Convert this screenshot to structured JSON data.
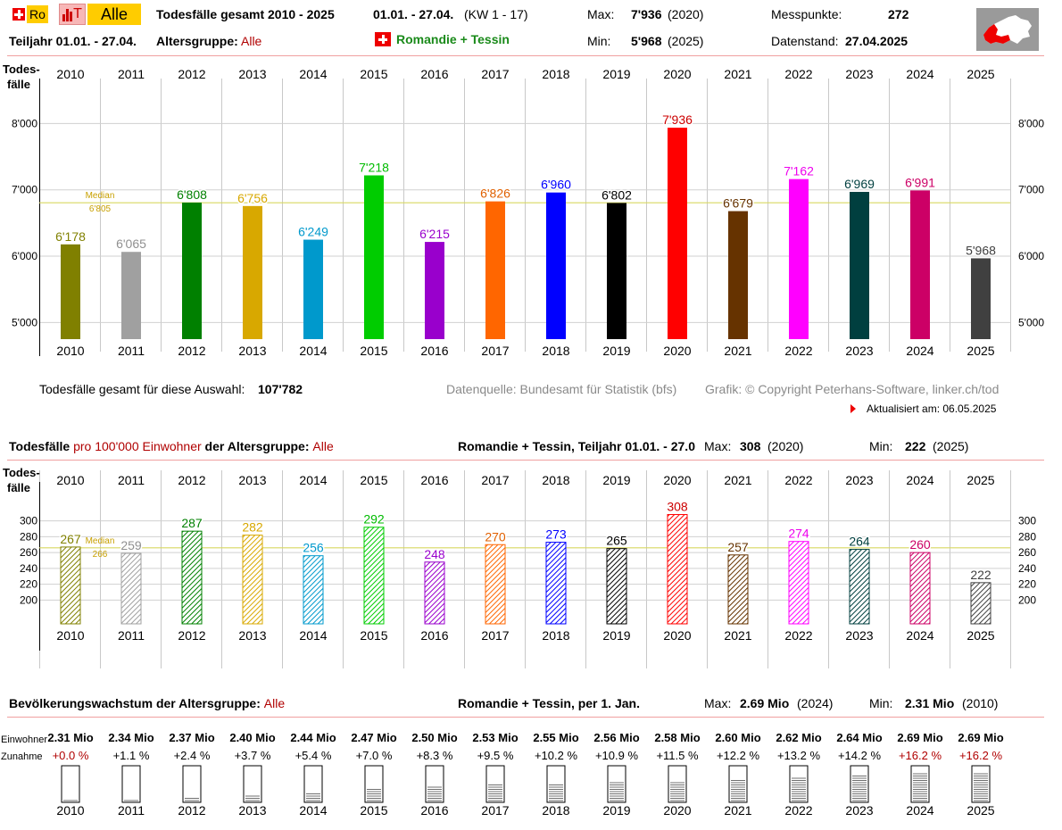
{
  "header": {
    "btn_ro": "Ro",
    "btn_t": "T",
    "btn_alle": "Alle",
    "title": "Todesfälle gesamt 2010 - 2025",
    "period": "01.01. - 27.04.",
    "kw": "(KW 1 - 17)",
    "max_label": "Max:",
    "max_value": "7'936",
    "max_year": "(2020)",
    "messpunkte_label": "Messpunkte:",
    "messpunkte_value": "272",
    "teiljahr": "Teiljahr 01.01. - 27.04.",
    "altersgruppe_label": "Altersgruppe:",
    "altersgruppe_value": "Alle",
    "region": "Romandie + Tessin",
    "min_label": "Min:",
    "min_value": "5'968",
    "min_year": "(2025)",
    "datenstand_label": "Datenstand:",
    "datenstand_value": "27.04.2025"
  },
  "colors": [
    "#808000",
    "#a0a0a0",
    "#008000",
    "#d8a800",
    "#0099cc",
    "#00cc00",
    "#9900cc",
    "#ff6600",
    "#0000ff",
    "#000000",
    "#ff0000",
    "#663300",
    "#ff00ff",
    "#003f3f",
    "#cc0066",
    "#404040"
  ],
  "label_colors": [
    "#808000",
    "#909090",
    "#008000",
    "#d8a800",
    "#0099cc",
    "#00bb00",
    "#9900cc",
    "#e06000",
    "#0000ff",
    "#000000",
    "#cc0000",
    "#663300",
    "#ee00ee",
    "#003f3f",
    "#cc0066",
    "#404040"
  ],
  "chart_data": [
    {
      "type": "bar",
      "ylabel": "Todes-\nfälle",
      "categories": [
        "2010",
        "2011",
        "2012",
        "2013",
        "2014",
        "2015",
        "2016",
        "2017",
        "2018",
        "2019",
        "2020",
        "2021",
        "2022",
        "2023",
        "2024",
        "2025"
      ],
      "values": [
        6178,
        6065,
        6808,
        6756,
        6249,
        7218,
        6215,
        6826,
        6960,
        6802,
        7936,
        6679,
        7162,
        6969,
        6991,
        5968
      ],
      "value_labels": [
        "6'178",
        "6'065",
        "6'808",
        "6'756",
        "6'249",
        "7'218",
        "6'215",
        "6'826",
        "6'960",
        "6'802",
        "7'936",
        "6'679",
        "7'162",
        "6'969",
        "6'991",
        "5'968"
      ],
      "ylim": [
        4750,
        9000
      ],
      "yticks": [
        5000,
        6000,
        7000,
        8000
      ],
      "ytick_labels": [
        "5'000",
        "6'000",
        "7'000",
        "8'000"
      ],
      "median_label": "Median",
      "median_value_label": "6'805",
      "median": 6805,
      "grid": true
    },
    {
      "type": "bar",
      "ylabel": "Todes-\nfälle",
      "categories": [
        "2010",
        "2011",
        "2012",
        "2013",
        "2014",
        "2015",
        "2016",
        "2017",
        "2018",
        "2019",
        "2020",
        "2021",
        "2022",
        "2023",
        "2024",
        "2025"
      ],
      "values": [
        267,
        259,
        287,
        282,
        256,
        292,
        248,
        270,
        273,
        265,
        308,
        257,
        274,
        264,
        260,
        222
      ],
      "value_labels": [
        "267",
        "259",
        "287",
        "282",
        "256",
        "292",
        "248",
        "270",
        "273",
        "265",
        "308",
        "257",
        "274",
        "264",
        "260",
        "222"
      ],
      "ylim": [
        170,
        330
      ],
      "yticks": [
        200,
        220,
        240,
        260,
        280,
        300
      ],
      "ytick_labels": [
        "200",
        "220",
        "240",
        "260",
        "280",
        "300"
      ],
      "median_label": "Median",
      "median_value_label": "266",
      "median": 266,
      "grid": true
    },
    {
      "type": "bar",
      "categories": [
        "2010",
        "2011",
        "2012",
        "2013",
        "2014",
        "2015",
        "2016",
        "2017",
        "2018",
        "2019",
        "2020",
        "2021",
        "2022",
        "2023",
        "2024",
        "2025"
      ],
      "einwohner_label": "Einwohner",
      "zunahme_label": "Zunahme",
      "population_labels": [
        "2.31 Mio",
        "2.34 Mio",
        "2.37 Mio",
        "2.40 Mio",
        "2.44 Mio",
        "2.47 Mio",
        "2.50 Mio",
        "2.53 Mio",
        "2.55 Mio",
        "2.56 Mio",
        "2.58 Mio",
        "2.60 Mio",
        "2.62 Mio",
        "2.64 Mio",
        "2.69 Mio",
        "2.69 Mio"
      ],
      "growth_labels": [
        "+0.0 %",
        "+1.1 %",
        "+2.4 %",
        "+3.7 %",
        "+5.4 %",
        "+7.0 %",
        "+8.3 %",
        "+9.5 %",
        "+10.2 %",
        "+10.9 %",
        "+11.5 %",
        "+12.2 %",
        "+13.2 %",
        "+14.2 %",
        "+16.2 %",
        "+16.2 %"
      ],
      "growth": [
        0.0,
        1.1,
        2.4,
        3.7,
        5.4,
        7.0,
        8.3,
        9.5,
        10.2,
        10.9,
        11.5,
        12.2,
        13.2,
        14.2,
        16.2,
        16.2
      ]
    }
  ],
  "summary": {
    "total_label": "Todesfälle gesamt für diese Auswahl:",
    "total_value": "107'782",
    "source": "Datenquelle: Bundesamt für Statistik (bfs)",
    "copyright": "Grafik: © Copyright Peterhans-Software, linker.ch/tod",
    "updated": "Aktualisiert am: 06.05.2025"
  },
  "section2": {
    "title_a": "Todesfälle",
    "title_b": "pro 100'000 Einwohner",
    "title_c": "der Altersgruppe:",
    "alle": "Alle",
    "region": "Romandie + Tessin, Teiljahr 01.01. - 27.0",
    "max_label": "Max:",
    "max_value": "308",
    "max_year": "(2020)",
    "min_label": "Min:",
    "min_value": "222",
    "min_year": "(2025)"
  },
  "section3": {
    "title": "Bevölkerungswachstum der Altersgruppe:",
    "alle": "Alle",
    "region": "Romandie + Tessin, per 1. Jan.",
    "max_label": "Max:",
    "max_value": "2.69 Mio",
    "max_year": "(2024)",
    "min_label": "Min:",
    "min_value": "2.31 Mio",
    "min_year": "(2010)"
  }
}
